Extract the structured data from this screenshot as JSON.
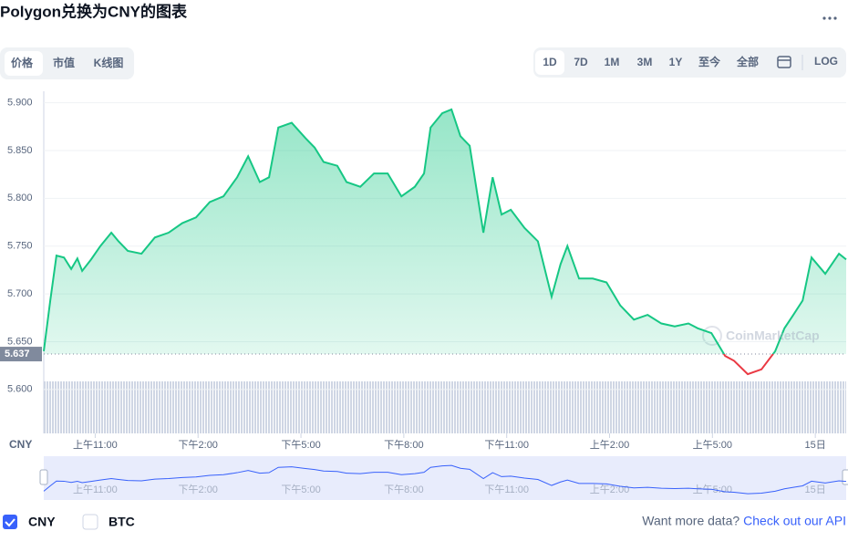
{
  "header": {
    "title": "Polygon兑换为CNY的图表"
  },
  "tabs": [
    "价格",
    "市值",
    "K线图"
  ],
  "ranges": [
    "1D",
    "7D",
    "1M",
    "3M",
    "1Y",
    "至今",
    "全部"
  ],
  "log_label": "LOG",
  "chart_data": {
    "type": "line",
    "x": [
      9.5,
      9.69,
      9.87,
      10.09,
      10.3,
      10.48,
      10.62,
      10.88,
      11.15,
      11.47,
      11.68,
      11.95,
      12.35,
      12.74,
      13.14,
      13.54,
      13.94,
      14.34,
      14.74,
      15.14,
      15.46,
      15.8,
      16.07,
      16.34,
      16.73,
      17.13,
      17.4,
      17.66,
      18.06,
      18.33,
      18.73,
      19.13,
      19.53,
      19.93,
      20.32,
      20.59,
      20.78,
      21.12,
      21.39,
      21.65,
      21.92,
      22.32,
      22.59,
      22.85,
      23.12,
      23.52,
      23.91,
      24.31,
      24.57,
      24.77,
      25.11,
      25.51,
      25.91,
      26.31,
      26.71,
      27.11,
      27.51,
      27.9,
      28.3,
      28.57,
      28.97,
      29.37,
      29.63,
      30.03,
      30.43,
      30.83,
      31.1,
      31.36,
      31.63,
      31.89,
      32.29,
      32.69,
      32.9
    ],
    "series": [
      {
        "name": "CNY",
        "color": "#16c784",
        "values": [
          5.64,
          5.693,
          5.74,
          5.738,
          5.726,
          5.737,
          5.724,
          5.736,
          5.75,
          5.764,
          5.755,
          5.745,
          5.742,
          5.759,
          5.764,
          5.774,
          5.78,
          5.796,
          5.802,
          5.822,
          5.844,
          5.817,
          5.822,
          5.874,
          5.879,
          5.863,
          5.853,
          5.838,
          5.834,
          5.817,
          5.812,
          5.826,
          5.826,
          5.802,
          5.812,
          5.826,
          5.874,
          5.889,
          5.893,
          5.865,
          5.855,
          5.764,
          5.822,
          5.783,
          5.788,
          5.769,
          5.755,
          5.697,
          5.731,
          5.75,
          5.716,
          5.716,
          5.712,
          5.688,
          5.673,
          5.678,
          5.669,
          5.666,
          5.669,
          5.664,
          5.659,
          5.635,
          5.63,
          5.616,
          5.621,
          5.64,
          5.664,
          5.678,
          5.693,
          5.738,
          5.721,
          5.742,
          5.736
        ]
      }
    ],
    "below_color": "#ea3943",
    "reference": {
      "value": 5.637,
      "label": "5.637"
    },
    "xlim": [
      9.5,
      32.9
    ],
    "xticks": [
      {
        "value": 11,
        "label": "上午11:00"
      },
      {
        "value": 14,
        "label": "下午2:00"
      },
      {
        "value": 17,
        "label": "下午5:00"
      },
      {
        "value": 20,
        "label": "下午8:00"
      },
      {
        "value": 23,
        "label": "下午11:00"
      },
      {
        "value": 26,
        "label": "上午2:00"
      },
      {
        "value": 29,
        "label": "上午5:00"
      },
      {
        "value": 32,
        "label": "15日"
      }
    ],
    "ylim": [
      5.554,
      5.912
    ],
    "yticks": [
      {
        "value": 5.6,
        "label": "5.600"
      },
      {
        "value": 5.65,
        "label": "5.650"
      },
      {
        "value": 5.7,
        "label": "5.700"
      },
      {
        "value": 5.75,
        "label": "5.750"
      },
      {
        "value": 5.8,
        "label": "5.800"
      },
      {
        "value": 5.85,
        "label": "5.850"
      },
      {
        "value": 5.9,
        "label": "5.900"
      }
    ],
    "grid": true,
    "watermark": "CoinMarketCap"
  },
  "legend": [
    {
      "label": "CNY",
      "checked": true
    },
    {
      "label": "BTC",
      "checked": false
    }
  ],
  "footer": {
    "text": "Want more data?",
    "link": "Check out our API"
  }
}
